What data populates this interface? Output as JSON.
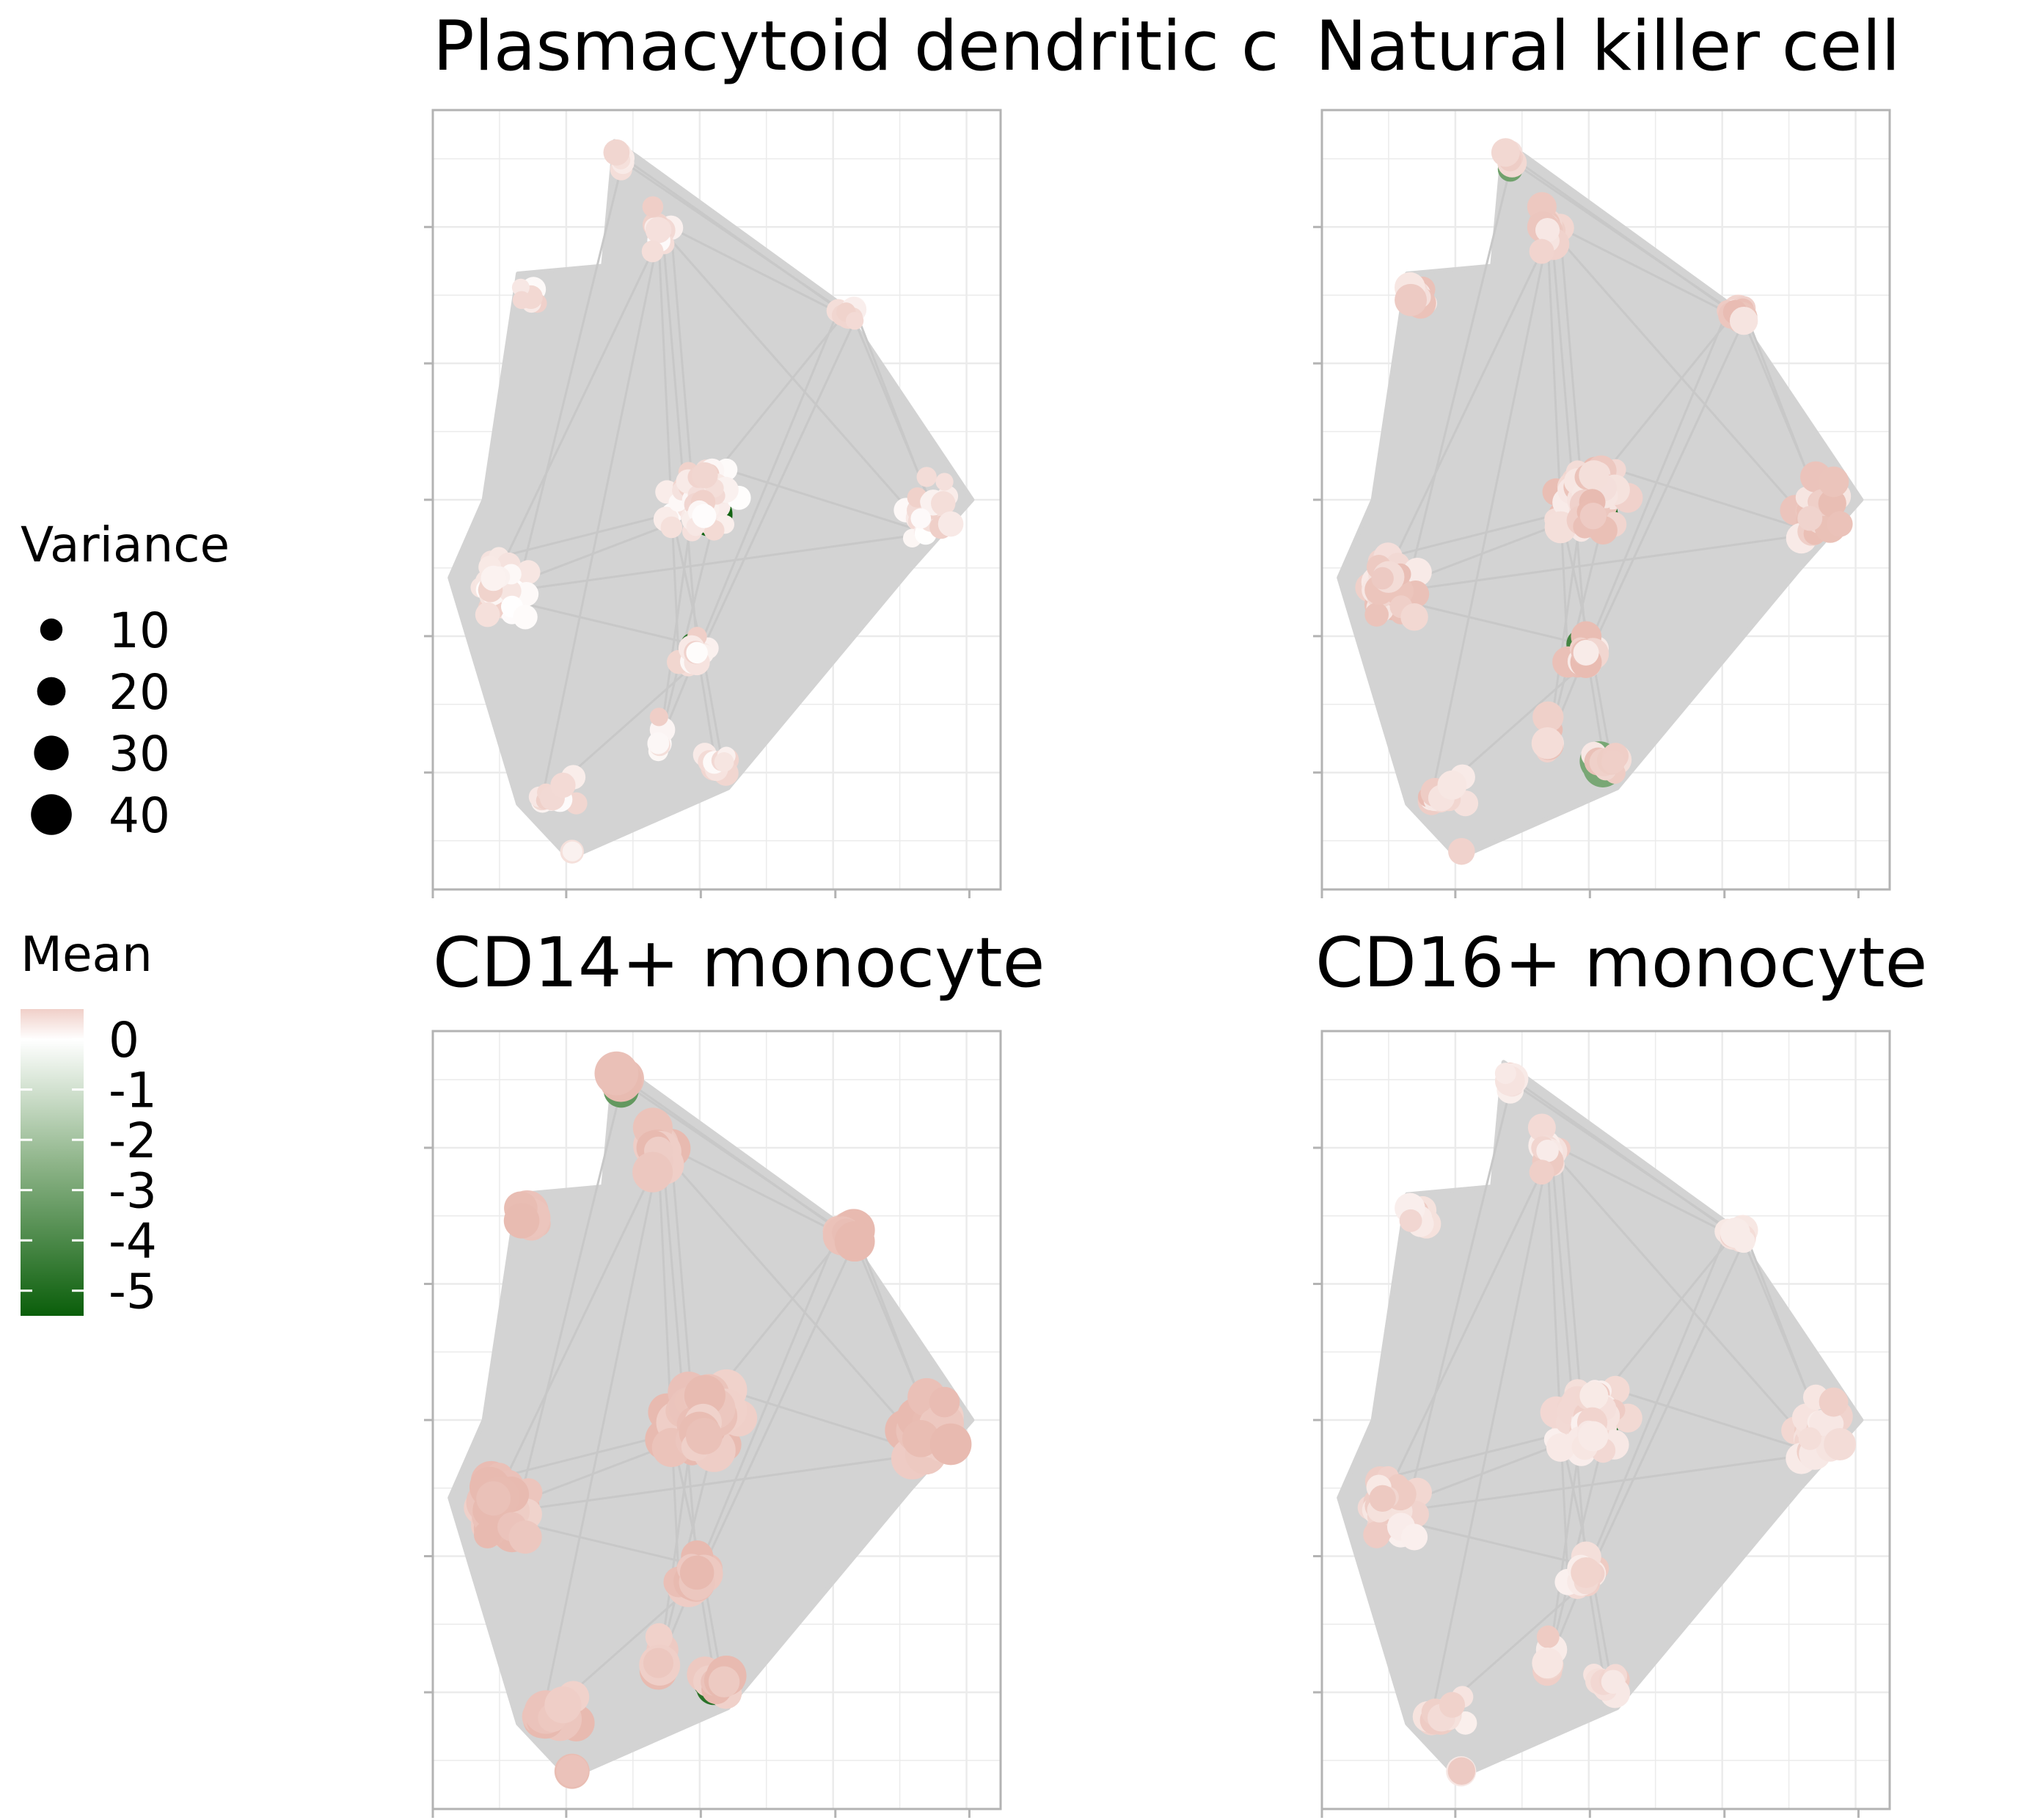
{
  "chart_data": [
    {
      "type": "scatter",
      "title": "Plasmacytoid dendritic cell",
      "title_visible": "Plasmacytoid dendritic c",
      "variant": "pdc",
      "xlabel": "",
      "ylabel": "",
      "grid": true,
      "x_tick_labels": [],
      "y_tick_labels": []
    },
    {
      "type": "scatter",
      "title": "Natural killer cell",
      "variant": "nk",
      "xlabel": "",
      "ylabel": "",
      "grid": true,
      "x_tick_labels": [],
      "y_tick_labels": []
    },
    {
      "type": "scatter",
      "title": "CD14+ monocyte",
      "variant": "cd14",
      "xlabel": "",
      "ylabel": "",
      "grid": true,
      "x_tick_labels": [],
      "y_tick_labels": []
    },
    {
      "type": "scatter",
      "title": "CD16+ monocyte",
      "variant": "cd16",
      "xlabel": "",
      "ylabel": "",
      "grid": true,
      "x_tick_labels": [],
      "y_tick_labels": []
    }
  ],
  "legend": {
    "variance": {
      "title": "Variance",
      "entries": [
        {
          "label": "10",
          "value": 10
        },
        {
          "label": "20",
          "value": 20
        },
        {
          "label": "30",
          "value": 30
        },
        {
          "label": "40",
          "value": 40
        }
      ]
    },
    "mean": {
      "title": "Mean",
      "range": [
        -5.5,
        0.6
      ],
      "ticks": [
        {
          "label": "0",
          "value": 0
        },
        {
          "label": "-1",
          "value": -1
        },
        {
          "label": "-2",
          "value": -2
        },
        {
          "label": "-3",
          "value": -3
        },
        {
          "label": "-4",
          "value": -4
        },
        {
          "label": "-5",
          "value": -5
        }
      ],
      "colors": {
        "high": "#f0cfc8",
        "mid": "#ffffff",
        "low": "#0a5e0a"
      }
    }
  },
  "colors": {
    "edge": "#d3d3d3",
    "grid": "#ebebeb",
    "border": "#b3b3b3"
  }
}
